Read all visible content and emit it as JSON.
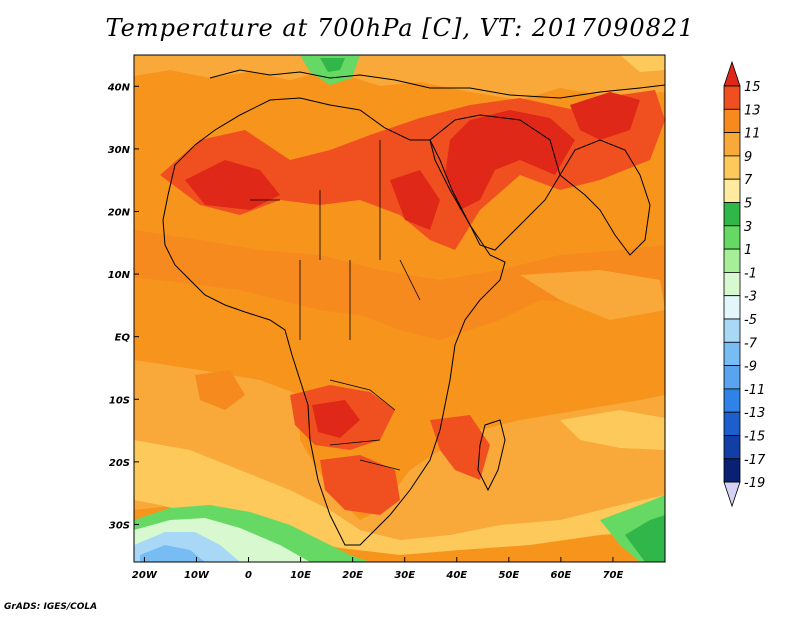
{
  "title": "Temperature at 700hPa [C], VT: 2017090821",
  "credit": "GrADS: IGES/COLA",
  "axes": {
    "x_ticks": [
      "20W",
      "10W",
      "0",
      "10E",
      "20E",
      "30E",
      "40E",
      "50E",
      "60E",
      "70E"
    ],
    "x_values": [
      -20,
      -10,
      0,
      10,
      20,
      30,
      40,
      50,
      60,
      70
    ],
    "y_ticks": [
      "40N",
      "30N",
      "20N",
      "10N",
      "EQ",
      "10S",
      "20S",
      "30S"
    ],
    "y_values": [
      40,
      30,
      20,
      10,
      0,
      -10,
      -20,
      -30
    ],
    "lon_range": [
      -22,
      80
    ],
    "lat_range": [
      -36,
      45
    ]
  },
  "colorbar": {
    "labels": [
      "15",
      "13",
      "11",
      "9",
      "7",
      "5",
      "3",
      "1",
      "-1",
      "-3",
      "-5",
      "-7",
      "-9",
      "-11",
      "-13",
      "-15",
      "-17",
      "-19"
    ],
    "colors": [
      "#e02818",
      "#f05020",
      "#f68a1e",
      "#f9a83a",
      "#fcc95a",
      "#feeba0",
      "#31b64a",
      "#66d964",
      "#a6ef98",
      "#d8f8d0",
      "#e2f6fc",
      "#a8d8f6",
      "#78bcf4",
      "#5aa3ef",
      "#2f83e6",
      "#1c5fcc",
      "#123fa6",
      "#0a2073",
      "#d6d2f5"
    ]
  }
}
